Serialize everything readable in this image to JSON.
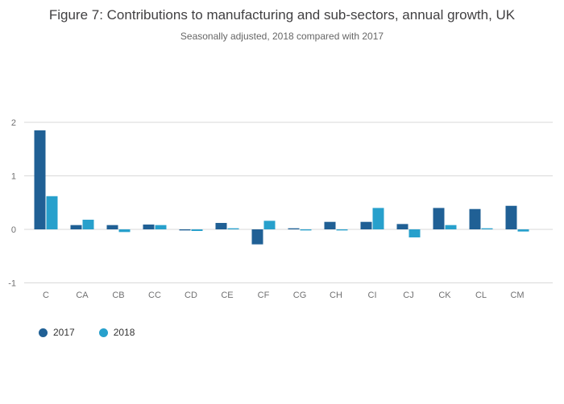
{
  "chart_data": {
    "type": "bar",
    "title": "Figure 7: Contributions to manufacturing and sub-sectors, annual growth, UK",
    "subtitle": "Seasonally adjusted, 2018 compared with 2017",
    "categories": [
      "C",
      "CA",
      "CB",
      "CC",
      "CD",
      "CE",
      "CF",
      "CG",
      "CH",
      "CI",
      "CJ",
      "CK",
      "CL",
      "CM"
    ],
    "series": [
      {
        "name": "2017",
        "color": "#206095",
        "values": [
          1.85,
          0.08,
          0.08,
          0.09,
          -0.02,
          0.12,
          -0.28,
          0.02,
          0.14,
          0.14,
          0.1,
          0.4,
          0.38,
          0.44
        ]
      },
      {
        "name": "2018",
        "color": "#27A0CC",
        "values": [
          0.62,
          0.18,
          -0.05,
          0.08,
          -0.03,
          0.02,
          0.16,
          -0.02,
          -0.02,
          0.4,
          -0.15,
          0.08,
          0.02,
          -0.04
        ]
      }
    ],
    "ylim": [
      -1,
      2
    ],
    "yticks": [
      2,
      1,
      0,
      -1
    ],
    "grid": true,
    "xlabel": "",
    "ylabel": "",
    "legend_position": "bottom-left"
  },
  "colors": {
    "grid": "#d9d9d9",
    "axis_text": "#707071",
    "title_text": "#414042"
  }
}
